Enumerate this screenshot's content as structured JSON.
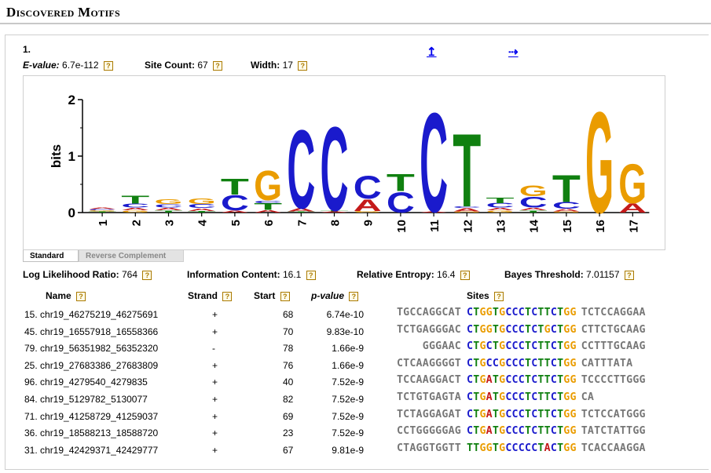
{
  "page_title": "Discovered Motifs",
  "motif": {
    "number": "1.",
    "evalue_label": "E-value:",
    "evalue": "6.7e-112",
    "site_count_label": "Site Count:",
    "site_count": "67",
    "width_label": "Width:",
    "width": "17",
    "nav_up": "↥",
    "nav_right": "⇢",
    "help": "?"
  },
  "logo": {
    "ylabel": "bits",
    "yticks": [
      "0",
      "1",
      "2"
    ],
    "ymax": 2,
    "positions": [
      {
        "pos": "1",
        "stack": [
          [
            "T",
            0.02
          ],
          [
            "G",
            0.02
          ],
          [
            "C",
            0.02
          ],
          [
            "A",
            0.03
          ]
        ]
      },
      {
        "pos": "2",
        "stack": [
          [
            "G",
            0.04
          ],
          [
            "A",
            0.05
          ],
          [
            "C",
            0.07
          ],
          [
            "T",
            0.15
          ]
        ]
      },
      {
        "pos": "3",
        "stack": [
          [
            "T",
            0.04
          ],
          [
            "A",
            0.05
          ],
          [
            "C",
            0.06
          ],
          [
            "G",
            0.08
          ]
        ]
      },
      {
        "pos": "4",
        "stack": [
          [
            "T",
            0.03
          ],
          [
            "A",
            0.05
          ],
          [
            "C",
            0.07
          ],
          [
            "G",
            0.1
          ]
        ]
      },
      {
        "pos": "5",
        "stack": [
          [
            "A",
            0.04
          ],
          [
            "C",
            0.28
          ],
          [
            "T",
            0.29
          ]
        ]
      },
      {
        "pos": "6",
        "stack": [
          [
            "A",
            0.05
          ],
          [
            "T",
            0.12
          ],
          [
            "C",
            0.05
          ],
          [
            "G",
            0.55
          ]
        ]
      },
      {
        "pos": "7",
        "stack": [
          [
            "T",
            0.02
          ],
          [
            "A",
            0.06
          ],
          [
            "C",
            1.45
          ]
        ]
      },
      {
        "pos": "8",
        "stack": [
          [
            "A",
            0.02
          ],
          [
            "T",
            0.02
          ],
          [
            "C",
            1.55
          ]
        ]
      },
      {
        "pos": "9",
        "stack": [
          [
            "G",
            0.03
          ],
          [
            "A",
            0.22
          ],
          [
            "C",
            0.42
          ]
        ]
      },
      {
        "pos": "10",
        "stack": [
          [
            "C",
            0.38
          ],
          [
            "T",
            0.32
          ]
        ]
      },
      {
        "pos": "11",
        "stack": [
          [
            "A",
            0.02
          ],
          [
            "C",
            1.83
          ]
        ]
      },
      {
        "pos": "12",
        "stack": [
          [
            "G",
            0.02
          ],
          [
            "A",
            0.06
          ],
          [
            "C",
            0.03
          ],
          [
            "T",
            1.35
          ]
        ]
      },
      {
        "pos": "13",
        "stack": [
          [
            "G",
            0.04
          ],
          [
            "A",
            0.05
          ],
          [
            "C",
            0.08
          ],
          [
            "T",
            0.1
          ]
        ]
      },
      {
        "pos": "14",
        "stack": [
          [
            "T",
            0.04
          ],
          [
            "A",
            0.05
          ],
          [
            "C",
            0.2
          ],
          [
            "G",
            0.2
          ]
        ]
      },
      {
        "pos": "15",
        "stack": [
          [
            "G",
            0.02
          ],
          [
            "A",
            0.05
          ],
          [
            "C",
            0.12
          ],
          [
            "T",
            0.5
          ]
        ]
      },
      {
        "pos": "16",
        "stack": [
          [
            "G",
            1.87
          ]
        ]
      },
      {
        "pos": "17",
        "stack": [
          [
            "A",
            0.17
          ],
          [
            "G",
            0.72
          ]
        ]
      }
    ]
  },
  "tabs": {
    "standard": "Standard",
    "reverse_complement": "Reverse Complement"
  },
  "stats": {
    "llr_label": "Log Likelihood Ratio:",
    "llr": "764",
    "ic_label": "Information Content:",
    "ic": "16.1",
    "re_label": "Relative Entropy:",
    "re": "16.4",
    "bt_label": "Bayes Threshold:",
    "bt": "7.01157"
  },
  "table": {
    "headers": {
      "name": "Name",
      "strand": "Strand",
      "start": "Start",
      "pvalue": "p-value",
      "sites": "Sites"
    },
    "rows": [
      {
        "name": "15. chr19_46275219_46275691",
        "strand": "+",
        "start": "68",
        "pvalue": "6.74e-10",
        "left": "TGCCAGGCAT",
        "site": "CTGGTGCCCTCTTCTGG",
        "right": "TCTCCAGGAA"
      },
      {
        "name": "45. chr19_16557918_16558366",
        "strand": "+",
        "start": "70",
        "pvalue": "9.83e-10",
        "left": "TCTGAGGGAC",
        "site": "CTGGTGCCCTCTGCTGG",
        "right": "CTTCTGCAAG"
      },
      {
        "name": "79. chr19_56351982_56352320",
        "strand": "-",
        "start": "78",
        "pvalue": "1.66e-9",
        "left": "GGGAAC",
        "site": "CTGCTGCCCTCTTCTGG",
        "right": "CCTTTGCAAG"
      },
      {
        "name": "25. chr19_27683386_27683809",
        "strand": "+",
        "start": "76",
        "pvalue": "1.66e-9",
        "left": "CTCAAGGGGT",
        "site": "CTGCCGCCCTCTTCTGG",
        "right": "CATTTATA"
      },
      {
        "name": "96. chr19_4279540_4279835",
        "strand": "+",
        "start": "40",
        "pvalue": "7.52e-9",
        "left": "TCCAAGGACT",
        "site": "CTGATGCCCTCTTCTGG",
        "right": "TCCCCTTGGG"
      },
      {
        "name": "84. chr19_5129782_5130077",
        "strand": "+",
        "start": "82",
        "pvalue": "7.52e-9",
        "left": "TCTGTGAGTA",
        "site": "CTGATGCCCTCTTCTGG",
        "right": "CA"
      },
      {
        "name": "71. chr19_41258729_41259037",
        "strand": "+",
        "start": "69",
        "pvalue": "7.52e-9",
        "left": "TCTAGGAGAT",
        "site": "CTGATGCCCTCTTCTGG",
        "right": "TCTCCATGGG"
      },
      {
        "name": "36. chr19_18588213_18588720",
        "strand": "+",
        "start": "23",
        "pvalue": "7.52e-9",
        "left": "CCTGGGGGAG",
        "site": "CTGATGCCCTCTTCTGG",
        "right": "TATCTATTGG"
      },
      {
        "name": "31. chr19_42429371_42429777",
        "strand": "+",
        "start": "67",
        "pvalue": "9.81e-9",
        "left": "CTAGGTGGTT",
        "site": "TTGGTGCCCCCTACTGG",
        "right": "TCACCAAGGA"
      }
    ]
  },
  "colors": {
    "A": "#c41a1a",
    "C": "#1a1acc",
    "G": "#ea9c00",
    "T": "#108010"
  }
}
